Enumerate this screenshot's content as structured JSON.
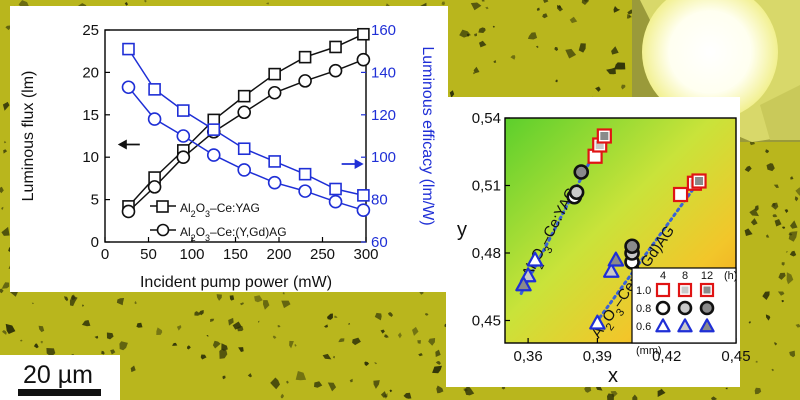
{
  "colors": {
    "background": "#b9b61d",
    "grain": "#2b2f08",
    "blue": "#1f2fd6",
    "black": "#111111",
    "red": "#e01414",
    "grey": "#8a8a8a",
    "grey_light": "#c9c9c9",
    "led": "#ffffff"
  },
  "scale_bar": {
    "label": "20 µm"
  },
  "chart_data": [
    {
      "type": "line",
      "xlabel": "Incident pump power (mW)",
      "ylabel": "Luminous flux (lm)",
      "y2label": "Luminous efficacy (lm/W)",
      "xlim": [
        0,
        300
      ],
      "ylim": [
        0,
        25
      ],
      "y2lim": [
        60,
        160
      ],
      "xticks": [
        0,
        50,
        100,
        150,
        200,
        250,
        300
      ],
      "yticks": [
        0,
        5,
        10,
        15,
        20,
        25
      ],
      "y2ticks": [
        60,
        80,
        100,
        120,
        140,
        160
      ],
      "grid": false,
      "legend_position": "lower-center",
      "series": [
        {
          "name": "Al2O3–Ce:YAG",
          "axis": "left",
          "marker": "square",
          "color": "black",
          "x": [
            27,
            57,
            90,
            125,
            160,
            195,
            230,
            265,
            297
          ],
          "y": [
            4.2,
            7.6,
            10.8,
            14.4,
            17.2,
            19.8,
            21.8,
            23.0,
            24.5
          ]
        },
        {
          "name": "Al2O3–Ce:(Y,Gd)AG",
          "axis": "left",
          "marker": "circle",
          "color": "black",
          "x": [
            27,
            57,
            90,
            125,
            160,
            195,
            230,
            265,
            297
          ],
          "y": [
            3.6,
            6.5,
            10.0,
            13.0,
            15.3,
            17.6,
            19.0,
            20.2,
            21.5
          ]
        },
        {
          "name": "",
          "axis": "right",
          "marker": "square",
          "color": "blue",
          "x": [
            27,
            57,
            90,
            125,
            160,
            195,
            230,
            265,
            297
          ],
          "y": [
            151,
            132,
            122,
            113,
            104,
            98,
            92,
            85,
            82
          ]
        },
        {
          "name": "",
          "axis": "right",
          "marker": "circle",
          "color": "blue",
          "x": [
            27,
            57,
            90,
            125,
            160,
            195,
            230,
            265,
            297
          ],
          "y": [
            133,
            118,
            110,
            101,
            94,
            88,
            84,
            79,
            75
          ]
        }
      ],
      "arrows": [
        {
          "direction": "left",
          "x": 40,
          "y": 11.5,
          "color": "black"
        },
        {
          "direction": "right",
          "x": 272,
          "y": 9.2,
          "color": "blue"
        }
      ]
    },
    {
      "type": "scatter",
      "xlabel": "x",
      "ylabel": "y",
      "xlim": [
        0.35,
        0.45
      ],
      "ylim": [
        0.44,
        0.54
      ],
      "xticks": [
        "0,36",
        "0,39",
        "0,42",
        "0,45"
      ],
      "yticks": [
        "0,45",
        "0,48",
        "0,51",
        "0,54"
      ],
      "background": "gradient green to orange",
      "annotations": [
        "Al2O3–Ce:YAG",
        "Al2O3–Ce:(Y,Gd)AG"
      ],
      "legend": {
        "position": "lower-right",
        "columns": [
          "4",
          "8",
          "12"
        ],
        "column_unit": "(h)",
        "rows": [
          "1.0",
          "0.8",
          "0.6"
        ],
        "row_unit": "(mm)"
      },
      "trend_lines": [
        {
          "x": [
            0.357,
            0.394
          ],
          "y": [
            0.462,
            0.535
          ]
        },
        {
          "x": [
            0.388,
            0.434
          ],
          "y": [
            0.447,
            0.512
          ]
        }
      ],
      "points": [
        {
          "x": 0.363,
          "y": 0.477,
          "thickness": "0.6",
          "time": "4"
        },
        {
          "x": 0.36,
          "y": 0.47,
          "thickness": "0.6",
          "time": "8"
        },
        {
          "x": 0.358,
          "y": 0.466,
          "thickness": "0.6",
          "time": "12"
        },
        {
          "x": 0.38,
          "y": 0.505,
          "thickness": "0.8",
          "time": "4"
        },
        {
          "x": 0.381,
          "y": 0.507,
          "thickness": "0.8",
          "time": "8"
        },
        {
          "x": 0.383,
          "y": 0.516,
          "thickness": "0.8",
          "time": "12"
        },
        {
          "x": 0.389,
          "y": 0.523,
          "thickness": "1.0",
          "time": "4"
        },
        {
          "x": 0.391,
          "y": 0.528,
          "thickness": "1.0",
          "time": "8"
        },
        {
          "x": 0.393,
          "y": 0.532,
          "thickness": "1.0",
          "time": "12"
        },
        {
          "x": 0.39,
          "y": 0.449,
          "thickness": "0.6",
          "time": "4"
        },
        {
          "x": 0.396,
          "y": 0.472,
          "thickness": "0.6",
          "time": "8"
        },
        {
          "x": 0.398,
          "y": 0.477,
          "thickness": "0.6",
          "time": "12"
        },
        {
          "x": 0.405,
          "y": 0.476,
          "thickness": "0.8",
          "time": "4"
        },
        {
          "x": 0.405,
          "y": 0.48,
          "thickness": "0.8",
          "time": "8"
        },
        {
          "x": 0.405,
          "y": 0.483,
          "thickness": "0.8",
          "time": "12"
        },
        {
          "x": 0.426,
          "y": 0.506,
          "thickness": "1.0",
          "time": "4"
        },
        {
          "x": 0.432,
          "y": 0.511,
          "thickness": "1.0",
          "time": "8"
        },
        {
          "x": 0.434,
          "y": 0.512,
          "thickness": "1.0",
          "time": "12"
        }
      ]
    }
  ]
}
